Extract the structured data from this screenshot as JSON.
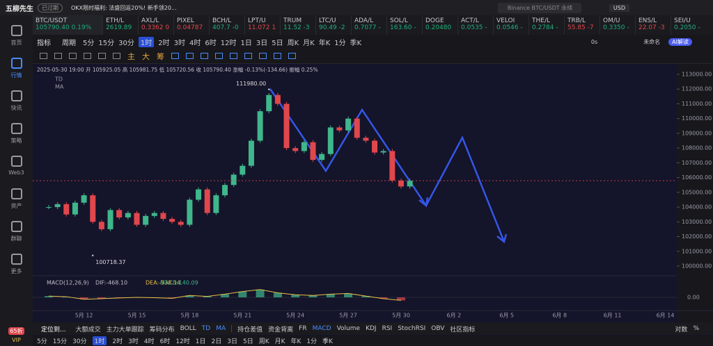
{
  "header": {
    "brand": "五柳先生",
    "badge": "已过期",
    "promo": "OKX限时福利: 法盛回返20%! 新手领20...",
    "search": "Binance BTC/USDT 永续",
    "currency": "USD"
  },
  "sidebar": {
    "items": [
      "首页",
      "行情",
      "快讯",
      "策略",
      "Web3",
      "资产",
      "群聊",
      "更多"
    ],
    "active": 1,
    "vip": "VIP",
    "discount": "65折"
  },
  "tickers": [
    {
      "name": "BTC/USDT",
      "price": "105790.40",
      "change": "0.19%",
      "color": "#1fb07a"
    },
    {
      "name": "ETH/L",
      "price": "2619.89",
      "color": "#1fb07a"
    },
    {
      "name": "AXL/L",
      "price": "0.3362 0",
      "color": "#e0474c"
    },
    {
      "name": "PIXEL",
      "price": "0.04787",
      "color": "#e0474c"
    },
    {
      "name": "BCH/L",
      "price": "407.7 -0",
      "color": "#1fb07a"
    },
    {
      "name": "LPT/U",
      "price": "11.072 1",
      "color": "#e0474c"
    },
    {
      "name": "TRUM",
      "price": "11.52 -3",
      "color": "#1fb07a"
    },
    {
      "name": "LTC/U",
      "price": "90.49 -2",
      "color": "#1fb07a"
    },
    {
      "name": "ADA/L",
      "price": "0.7077 -",
      "color": "#1fb07a"
    },
    {
      "name": "SOL/L",
      "price": "163.60 -",
      "color": "#1fb07a"
    },
    {
      "name": "DOGE",
      "price": "0.20480",
      "color": "#1fb07a"
    },
    {
      "name": "ACT/L",
      "price": "0.0535 -",
      "color": "#1fb07a"
    },
    {
      "name": "VELOI",
      "price": "0.0546 -",
      "color": "#1fb07a"
    },
    {
      "name": "THE/L",
      "price": "0.2784 -",
      "color": "#1fb07a"
    },
    {
      "name": "TRB/L",
      "price": "55.85 -7",
      "color": "#e0474c"
    },
    {
      "name": "OM/U",
      "price": "0.3350 -",
      "color": "#1fb07a"
    },
    {
      "name": "ENS/L",
      "price": "22.07 -3",
      "color": "#e0474c"
    },
    {
      "name": "SEI/U",
      "price": "0.2050 -",
      "color": "#1fb07a"
    }
  ],
  "toolbar": {
    "indicator": "指标",
    "period": "周期",
    "periods": [
      "5分",
      "15分",
      "30分",
      "1时",
      "2时",
      "3时",
      "4时",
      "6时",
      "12时",
      "1日",
      "3日",
      "5日",
      "周K",
      "月K",
      "年K",
      "1分",
      "季K"
    ],
    "active": 3,
    "delay": "0s",
    "layout": "未命名",
    "ai": "AI解读",
    "tools": [
      "主",
      "大",
      "筹"
    ]
  },
  "chart_data": {
    "type": "candlestick",
    "info": "2025-05-30 19:00 开 105925.05 高 105981.75 低 105720.56 收 105790.40 涨幅 -0.13%(-134.66) 振幅 0.25%",
    "overlays": [
      "TD",
      "MA"
    ],
    "values": [
      104000,
      104200,
      103500,
      104300,
      104800,
      103000,
      102500,
      103800,
      103300,
      103600,
      102800,
      103400,
      103600,
      103200,
      103000,
      102800,
      104500,
      105200,
      103600,
      104800,
      105500,
      106200,
      106800,
      108500,
      110500,
      111600,
      111000,
      108000,
      107800,
      108400,
      107200,
      107600,
      109400,
      109200,
      110000,
      108700,
      108500,
      107700,
      107800,
      105800,
      105400,
      105790.4
    ],
    "up_color": "#3fb68b",
    "down_color": "#e0474c",
    "high": {
      "index": 25,
      "value": 111980,
      "label": "111980.00"
    },
    "low": {
      "index": 5,
      "value": 100718.37,
      "label": "100718.37"
    },
    "ylim": [
      99500,
      113500
    ],
    "yticks": [
      {
        "value": 113000,
        "label": "113000.00"
      },
      {
        "value": 112000,
        "label": "112000.00"
      },
      {
        "value": 111000,
        "label": "111000.00"
      },
      {
        "value": 110000,
        "label": "110000.00"
      },
      {
        "value": 109000,
        "label": "109000.00"
      },
      {
        "value": 108000,
        "label": "108000.00"
      },
      {
        "value": 107000,
        "label": "107000.00"
      },
      {
        "value": 106000,
        "label": "106000.00"
      },
      {
        "value": 105000,
        "label": "105000.00"
      },
      {
        "value": 104000,
        "label": "104000.00"
      },
      {
        "value": 103000,
        "label": "103000.00"
      },
      {
        "value": 102000,
        "label": "102000.00"
      },
      {
        "value": 101000,
        "label": "101000.00"
      },
      {
        "value": 100000,
        "label": "100000.00"
      }
    ],
    "xticks": [
      "5月 12",
      "5月 15",
      "5月 18",
      "5月 21",
      "5月 24",
      "5月 27",
      "5月 30",
      "6月 2",
      "6月 5",
      "6月 8",
      "6月 11",
      "6月 14"
    ],
    "macd": {
      "title": "MACD(12,26,9)",
      "dif": "DIF:-468.10",
      "dea": "DEA:-538.14",
      "hist": "MACD:140.09",
      "zero": {
        "value": 0,
        "label": "0.00"
      },
      "ylim": [
        -1500,
        1500
      ],
      "values": [
        200,
        100,
        -300,
        -200,
        -100,
        0,
        -50,
        -150,
        300,
        150,
        500,
        900,
        1200,
        700,
        400,
        300,
        500,
        600,
        200,
        -200,
        -468.1
      ]
    }
  },
  "bottom": {
    "locate": "定位到...",
    "indicators": [
      "大额成交",
      "主力大单跟踪",
      "筹码分布",
      "BOLL",
      "TD",
      "MA"
    ],
    "indicators2": [
      "持仓差值",
      "资金背离",
      "FR",
      "MACD",
      "Volume",
      "KDJ",
      "RSI",
      "StochRSI",
      "OBV",
      "社区指标"
    ],
    "right": [
      "对数",
      "%"
    ],
    "periods": [
      "5分",
      "15分",
      "30分",
      "1时",
      "2时",
      "3时",
      "4时",
      "6时",
      "12时",
      "1日",
      "2日",
      "3日",
      "5日",
      "周K",
      "月K",
      "年K",
      "1分",
      "季K"
    ],
    "active": 3
  }
}
